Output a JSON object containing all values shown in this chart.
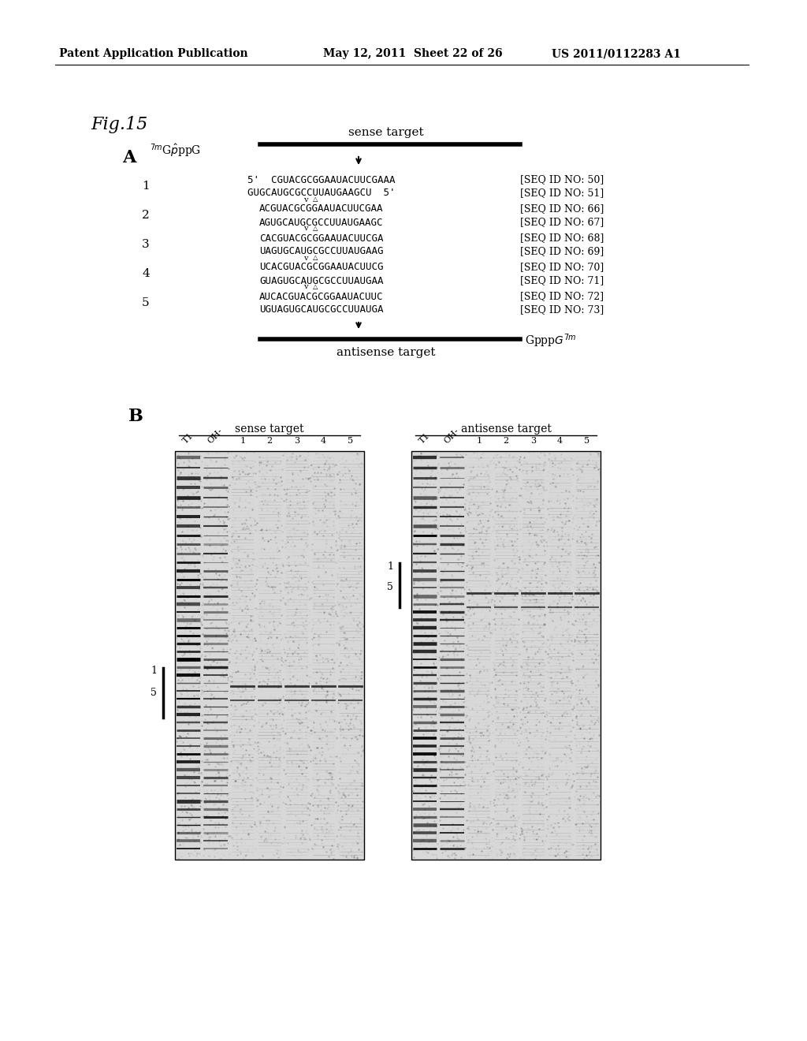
{
  "header_left": "Patent Application Publication",
  "header_mid": "May 12, 2011  Sheet 22 of 26",
  "header_right": "US 2011/0112283 A1",
  "fig_label": "Fig.15",
  "panel_A_label": "A",
  "panel_B_label": "B",
  "sense_target_label": "sense target",
  "antisense_target_label": "antisense target",
  "cap_left": "7mGpppG",
  "cap_right": "GpppG7m",
  "rows": [
    {
      "num": "1",
      "seq1": "5'  CGUACGCGGAAUACUUCGAAA",
      "seq2": "GUGCAUGCGCCUUAUGAAGCU  5'",
      "id1": "[SEQ ID NO: 50]",
      "id2": "[SEQ ID NO: 51]"
    },
    {
      "num": "2",
      "seq1": "ACGUACGCGGAAUACUUCGAA",
      "seq2": "AGUGCAUGCGCCUUAUGAAGC",
      "id1": "[SEQ ID NO: 66]",
      "id2": "[SEQ ID NO: 67]"
    },
    {
      "num": "3",
      "seq1": "CACGUACGCGGAAUACUUCGA",
      "seq2": "UAGUGCAUGCGCCUUAUGAAG",
      "id1": "[SEQ ID NO: 68]",
      "id2": "[SEQ ID NO: 69]"
    },
    {
      "num": "4",
      "seq1": "UCACGUACGCGGAAUACUUCG",
      "seq2": "GUAGUGCAUGCGCCUUAUGAA",
      "id1": "[SEQ ID NO: 70]",
      "id2": "[SEQ ID NO: 71]"
    },
    {
      "num": "5",
      "seq1": "AUCACGUACGCGGAAUACUUC",
      "seq2": "UGUAGUGCAUGCGCCUUAUGA",
      "id1": "[SEQ ID NO: 72]",
      "id2": "[SEQ ID NO: 73]"
    }
  ],
  "gel_sense_label": "sense target",
  "gel_antisense_label": "antisense target",
  "gel_lanes": [
    "T1",
    "OH-",
    "1",
    "2",
    "3",
    "4",
    "5"
  ],
  "bg_color": "#ffffff",
  "text_color": "#000000"
}
